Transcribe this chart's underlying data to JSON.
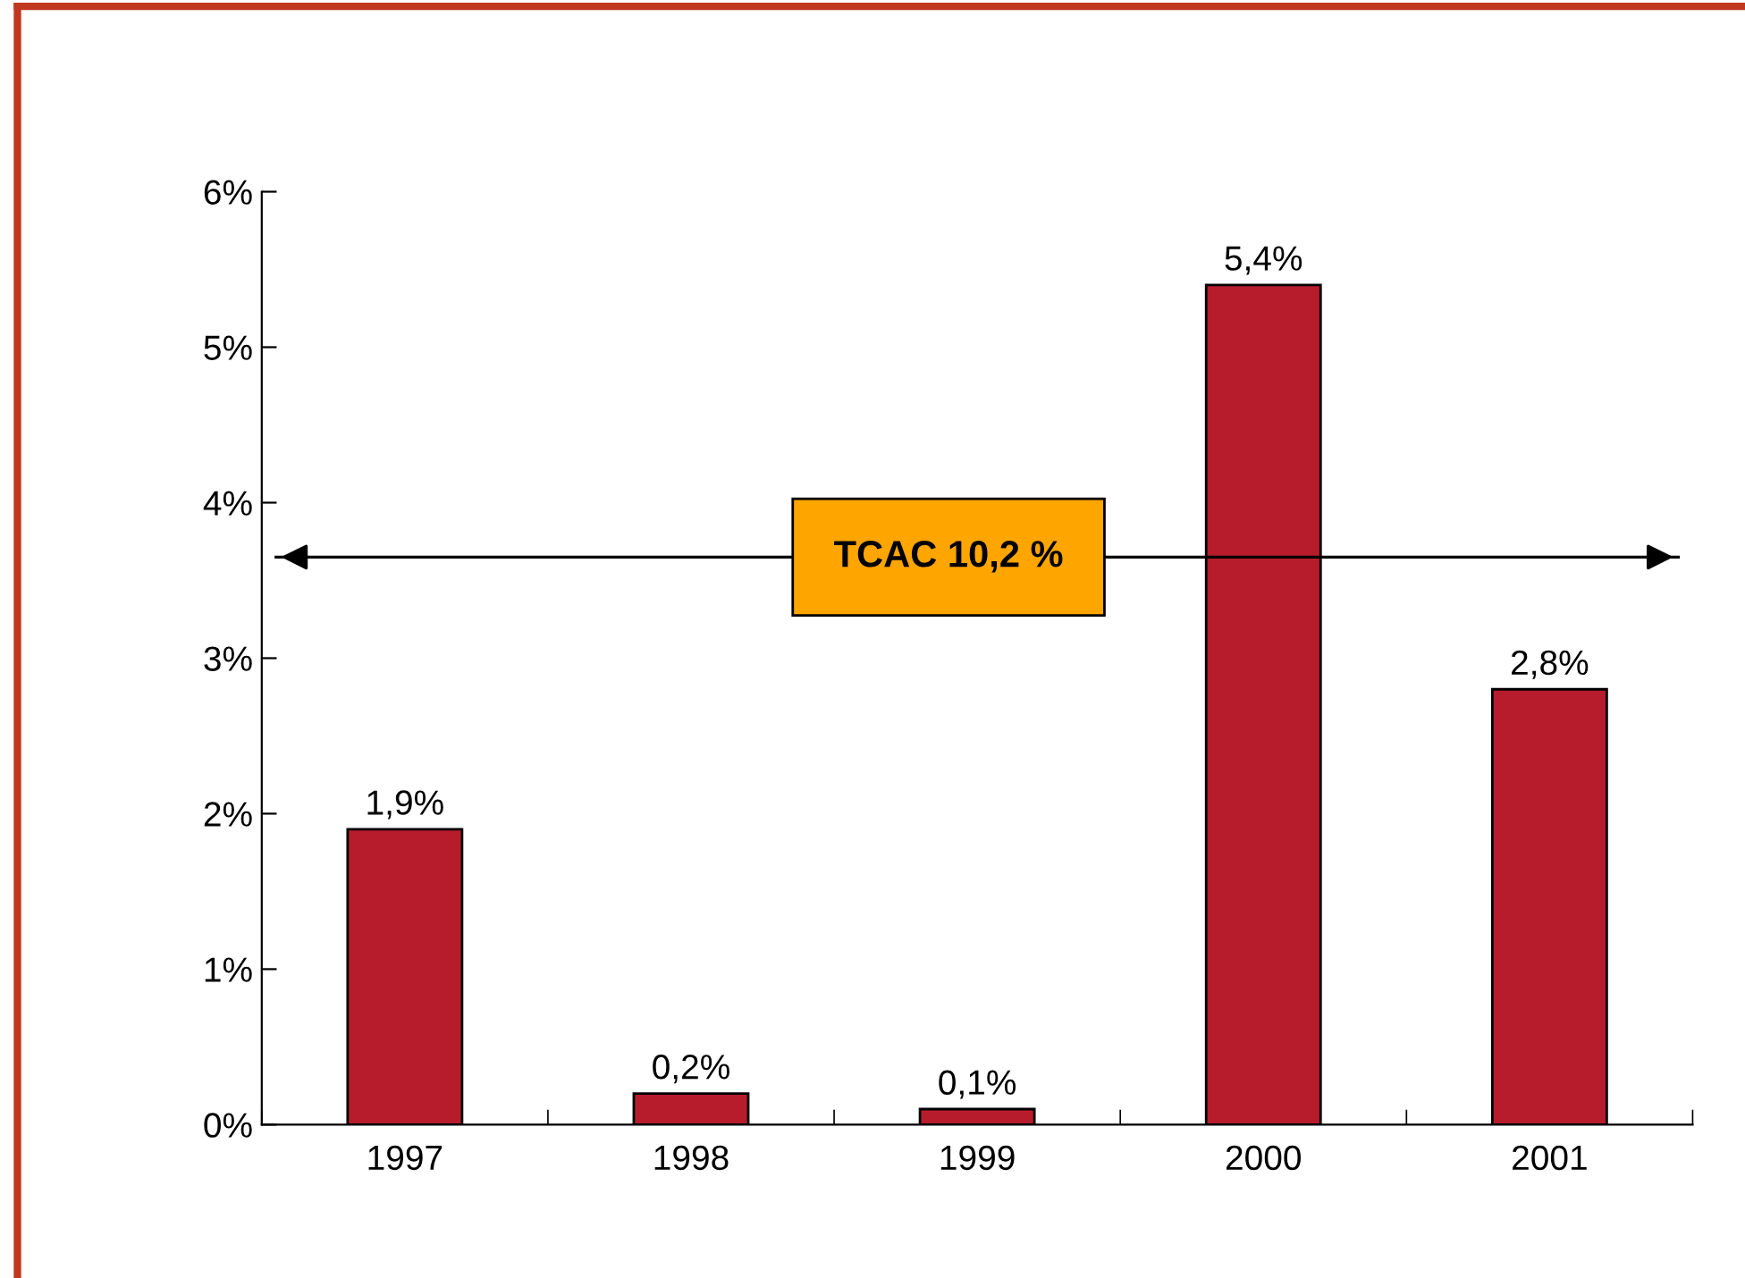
{
  "chart_data": {
    "type": "bar",
    "categories": [
      "1997",
      "1998",
      "1999",
      "2000",
      "2001"
    ],
    "values": [
      1.9,
      0.2,
      0.1,
      5.4,
      2.8
    ],
    "value_labels": [
      "1,9%",
      "0,2%",
      "0,1%",
      "5,4%",
      "2,8%"
    ],
    "color": "#b71c2c",
    "ylim": [
      0,
      6
    ],
    "yticks": [
      {
        "value": 0,
        "label": "0%"
      },
      {
        "value": 1,
        "label": "1%"
      },
      {
        "value": 2,
        "label": "2%"
      },
      {
        "value": 3,
        "label": "3%"
      },
      {
        "value": 4,
        "label": "4%"
      },
      {
        "value": 5,
        "label": "5%"
      },
      {
        "value": 6,
        "label": "6%"
      }
    ],
    "ref_lines": [
      {
        "axis": "y",
        "value": 3.65,
        "label": "TCAC 10,2 %",
        "color": "#000000"
      }
    ],
    "grid": false,
    "legend": false
  }
}
